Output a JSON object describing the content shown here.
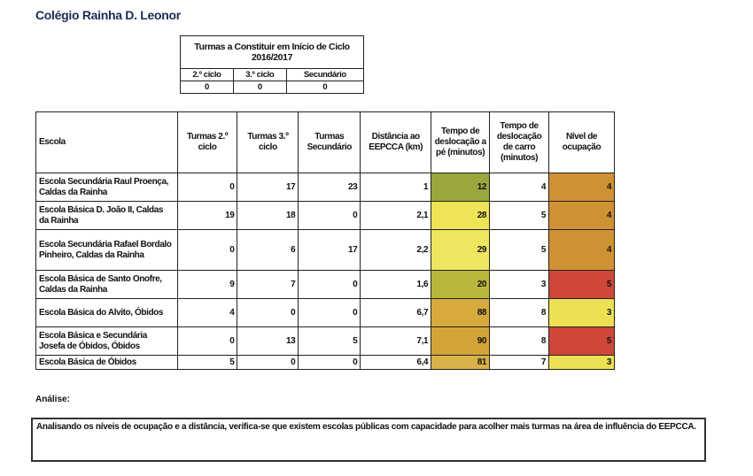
{
  "title": "Colégio Rainha D. Leonor",
  "summary_table": {
    "header": "Turmas a Constituir em Início de Ciclo 2016/2017",
    "columns": [
      "2.º ciclo",
      "3.º ciclo",
      "Secundário"
    ],
    "values": [
      "0",
      "0",
      "0"
    ]
  },
  "main_table": {
    "columns": [
      "Escola",
      "Turmas 2.º ciclo",
      "Turmas 3.º ciclo",
      "Turmas Secundário",
      "Distância ao EEPCCA (km)",
      "Tempo de deslocação a pé (minutos)",
      "Tempo de deslocação de carro (minutos)",
      "Nível de ocupação"
    ],
    "rows": [
      {
        "escola": "Escola Secundária Raul Proença, Caldas da Rainha",
        "t2": "0",
        "t3": "17",
        "ts": "23",
        "dist": "1",
        "pe": "12",
        "carro": "4",
        "nivel": "4",
        "pe_color": "#9aa73c",
        "nivel_color": "#cf9232"
      },
      {
        "escola": "Escola Básica D. João II, Caldas da Rainha",
        "t2": "19",
        "t3": "18",
        "ts": "0",
        "dist": "2,1",
        "pe": "28",
        "carro": "5",
        "nivel": "4",
        "pe_color": "#ede556",
        "nivel_color": "#cf9232"
      },
      {
        "escola": "Escola Secundária Rafael Bordalo Pinheiro, Caldas da Rainha",
        "t2": "0",
        "t3": "6",
        "ts": "17",
        "dist": "2,2",
        "pe": "29",
        "carro": "5",
        "nivel": "4",
        "pe_color": "#efe660",
        "nivel_color": "#cf9232"
      },
      {
        "escola": "Escola Básica de Santo Onofre, Caldas da Rainha",
        "t2": "9",
        "t3": "7",
        "ts": "0",
        "dist": "1,6",
        "pe": "20",
        "carro": "3",
        "nivel": "5",
        "pe_color": "#bab73e",
        "nivel_color": "#d0463a"
      },
      {
        "escola": "Escola Básica do Alvito, Óbidos",
        "t2": "4",
        "t3": "0",
        "ts": "0",
        "dist": "6,7",
        "pe": "88",
        "carro": "8",
        "nivel": "3",
        "pe_color": "#d6aa3c",
        "nivel_color": "#ece152"
      },
      {
        "escola": "Escola Básica e Secundária Josefa de Óbidos, Óbidos",
        "t2": "0",
        "t3": "13",
        "ts": "5",
        "dist": "7,1",
        "pe": "90",
        "carro": "8",
        "nivel": "5",
        "pe_color": "#d3a43a",
        "nivel_color": "#d0463a"
      },
      {
        "escola": "Escola Básica de Óbidos",
        "t2": "5",
        "t3": "0",
        "ts": "0",
        "dist": "6,4",
        "pe": "81",
        "carro": "7",
        "nivel": "3",
        "pe_color": "#d9b248",
        "nivel_color": "#ece152"
      }
    ]
  },
  "analysis": {
    "label": "Análise:",
    "text": "Analisando os níveis de ocupação e a distância, verifica-se que existem escolas públicas com capacidade para acolher mais turmas na área de influência do EEPCCA."
  }
}
